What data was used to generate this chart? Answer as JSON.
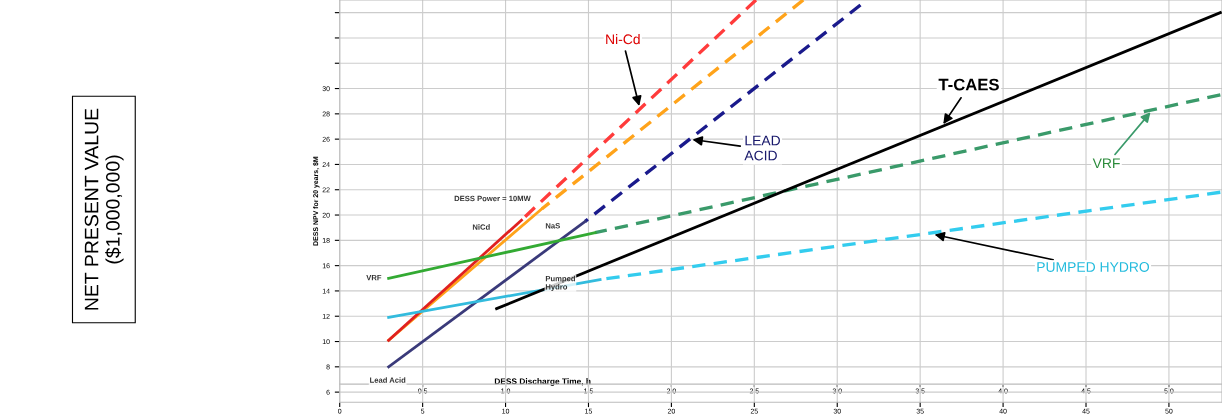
{
  "chart_data": {
    "type": "line",
    "title": "DESS Power = 10MW",
    "ylabel": "DESS NPV for 20 years, $M",
    "x2label": "DESS Discharge Time, h",
    "xlim": [
      0,
      53.2
    ],
    "xticks": [
      0,
      5,
      10,
      15,
      20,
      25,
      30,
      35,
      40,
      45,
      50
    ],
    "x2lim": [
      0,
      5.32
    ],
    "x2ticks": [
      0.5,
      {
        "value": 1,
        "label": "1.0"
      },
      1.5,
      {
        "value": 2,
        "label": "2.0"
      },
      2.5,
      {
        "value": 3,
        "label": "3.0"
      },
      3.5,
      {
        "value": 4,
        "label": "4.0"
      },
      4.5,
      {
        "value": 5,
        "label": "5.0"
      }
    ],
    "ylim": [
      5.2,
      37
    ],
    "yticks": [
      6,
      8,
      10,
      12,
      14,
      16,
      18,
      20,
      22,
      24,
      26,
      28,
      30,
      {
        "value": 32,
        "label": null
      },
      {
        "value": 34,
        "label": null
      },
      {
        "value": 36,
        "label": null
      }
    ],
    "grid": true,
    "marker": "none",
    "series": [
      {
        "color": "#ff3b3b",
        "line_style": "dashed",
        "x": [
          10.96,
          25.1
        ],
        "values": [
          19.6,
          37
        ]
      },
      {
        "color": "#ffa31a",
        "line_style": "dashed",
        "x": [
          12.2,
          27.95
        ],
        "values": [
          20.5,
          37
        ]
      },
      {
        "color": "#1a1a8c",
        "line_style": "dashed",
        "x": [
          14.8,
          31.4
        ],
        "values": [
          19.5,
          36.6
        ]
      },
      {
        "color": "#3a9a6a",
        "line_style": "dashed",
        "x": [
          15.4,
          53.1
        ],
        "values": [
          18.6,
          29.5
        ]
      },
      {
        "color": "#33ccee",
        "line_style": "dashed",
        "x": [
          15.7,
          53.1
        ],
        "values": [
          14.9,
          21.8
        ]
      },
      {
        "color": "#ffa31a",
        "line_style": "solid",
        "x": [
          2.95,
          12.2
        ],
        "values": [
          10.1,
          20.5
        ]
      },
      {
        "color": "#e02020",
        "line_style": "solid",
        "x": [
          2.95,
          10.96
        ],
        "values": [
          10.1,
          19.6
        ]
      },
      {
        "color": "#3a3a7a",
        "line_style": "solid",
        "x": [
          2.95,
          14.8
        ],
        "values": [
          8.0,
          19.5
        ]
      },
      {
        "color": "#33aa33",
        "line_style": "solid",
        "x": [
          2.95,
          15.4
        ],
        "values": [
          15.0,
          18.6
        ]
      },
      {
        "color": "#33bbdd",
        "line_style": "solid",
        "x": [
          2.95,
          15.7
        ],
        "values": [
          11.9,
          14.9
        ]
      },
      {
        "color": "#000000",
        "line_style": "solid",
        "x": [
          9.46,
          53.1
        ],
        "values": [
          12.6,
          36.0
        ]
      }
    ],
    "annotations": [
      {
        "text": "Ni-Cd",
        "x": 18.1,
        "y": 28.4
      },
      {
        "text": "LEAD\nACID",
        "x": 21.1,
        "y": 26.0
      },
      {
        "text": "T-CAES",
        "x": 36.3,
        "y": 27.0
      },
      {
        "text": "VRF",
        "x": 49.0,
        "y": 28.3
      },
      {
        "text": "PUMPED HYDRO",
        "x": 35.7,
        "y": 18.5
      },
      "NiCd",
      "NaS",
      "VRF",
      "Pumped\nHydro",
      "Lead Acid",
      "NET PRESENT VALUE\n($1,000,000)"
    ]
  }
}
